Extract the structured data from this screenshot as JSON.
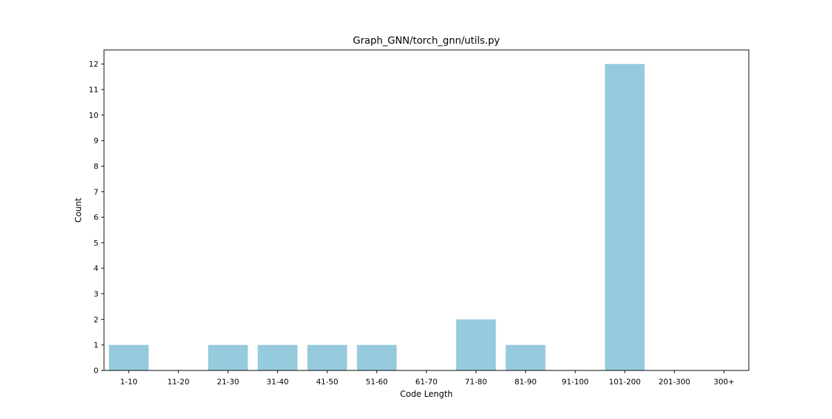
{
  "chart_data": {
    "type": "bar",
    "title": "Graph_GNN/torch_gnn/utils.py",
    "xlabel": "Code Length",
    "ylabel": "Count",
    "categories": [
      "1-10",
      "11-20",
      "21-30",
      "31-40",
      "41-50",
      "51-60",
      "61-70",
      "71-80",
      "81-90",
      "91-100",
      "101-200",
      "201-300",
      "300+"
    ],
    "values": [
      1,
      0,
      1,
      1,
      1,
      1,
      0,
      2,
      1,
      0,
      12,
      0,
      0
    ],
    "ylim": [
      0,
      12.55
    ],
    "yticks": [
      0,
      1,
      2,
      3,
      4,
      5,
      6,
      7,
      8,
      9,
      10,
      11,
      12
    ],
    "grid": false,
    "bar_color": "#96cadd"
  }
}
